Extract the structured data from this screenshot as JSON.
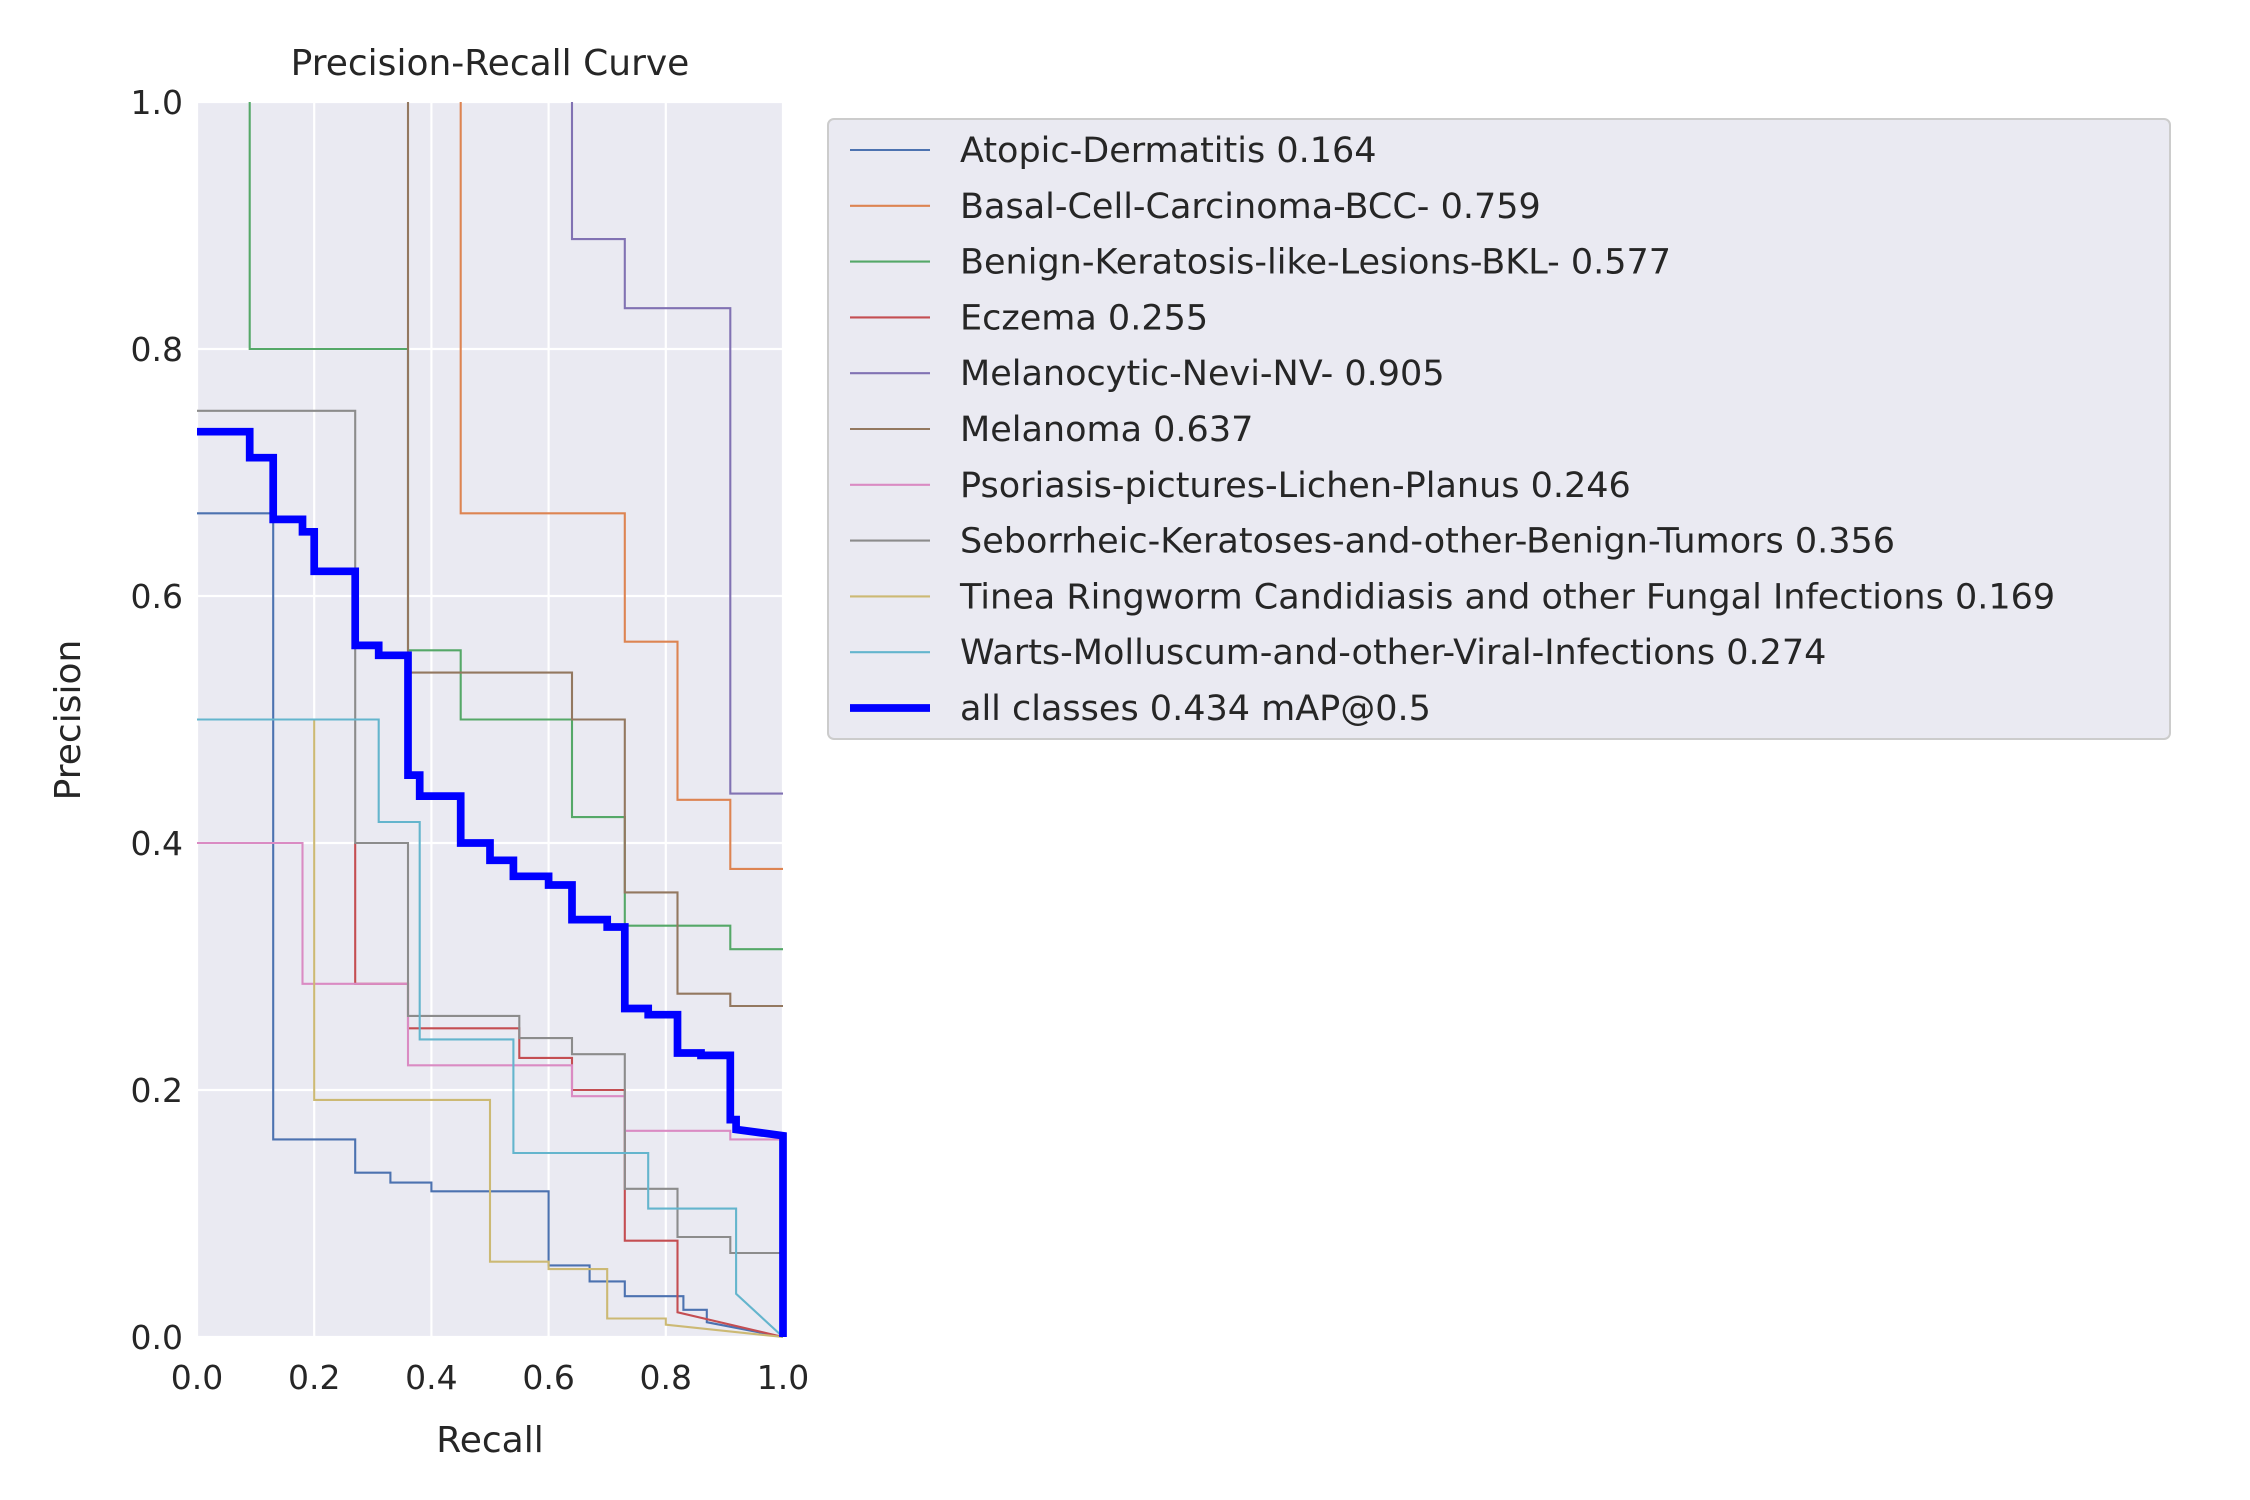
{
  "chart_data": {
    "type": "line",
    "title": "Precision-Recall Curve",
    "xlabel": "Recall",
    "ylabel": "Precision",
    "xlim": [
      0,
      1
    ],
    "ylim": [
      0,
      1
    ],
    "grid": true,
    "legend_position": "outside-right",
    "x_ticks": [
      "0.0",
      "0.2",
      "0.4",
      "0.6",
      "0.8",
      "1.0"
    ],
    "y_ticks": [
      "0.0",
      "0.2",
      "0.4",
      "0.6",
      "0.8",
      "1.0"
    ],
    "series": [
      {
        "name": "Atopic-Dermatitis 0.164",
        "color": "#4c72b0",
        "width": 1.5,
        "points": [
          [
            0,
            0.667
          ],
          [
            0.13,
            0.667
          ],
          [
            0.13,
            0.16
          ],
          [
            0.27,
            0.16
          ],
          [
            0.27,
            0.133
          ],
          [
            0.33,
            0.133
          ],
          [
            0.33,
            0.125
          ],
          [
            0.4,
            0.125
          ],
          [
            0.4,
            0.118
          ],
          [
            0.6,
            0.118
          ],
          [
            0.6,
            0.058
          ],
          [
            0.67,
            0.058
          ],
          [
            0.67,
            0.045
          ],
          [
            0.73,
            0.045
          ],
          [
            0.73,
            0.033
          ],
          [
            0.83,
            0.033
          ],
          [
            0.83,
            0.022
          ],
          [
            0.87,
            0.022
          ],
          [
            0.87,
            0.012
          ],
          [
            1.0,
            0.0
          ]
        ]
      },
      {
        "name": "Basal-Cell-Carcinoma-BCC- 0.759",
        "color": "#dd8452",
        "width": 1.5,
        "points": [
          [
            0.45,
            1.0
          ],
          [
            0.45,
            0.667
          ],
          [
            0.73,
            0.667
          ],
          [
            0.73,
            0.563
          ],
          [
            0.82,
            0.563
          ],
          [
            0.82,
            0.435
          ],
          [
            0.91,
            0.435
          ],
          [
            0.91,
            0.379
          ],
          [
            1.0,
            0.379
          ]
        ]
      },
      {
        "name": "Benign-Keratosis-like-Lesions-BKL- 0.577",
        "color": "#55a868",
        "width": 1.5,
        "points": [
          [
            0.09,
            1.0
          ],
          [
            0.09,
            0.8
          ],
          [
            0.36,
            0.8
          ],
          [
            0.36,
            0.556
          ],
          [
            0.45,
            0.556
          ],
          [
            0.45,
            0.5
          ],
          [
            0.64,
            0.5
          ],
          [
            0.64,
            0.421
          ],
          [
            0.73,
            0.421
          ],
          [
            0.73,
            0.333
          ],
          [
            0.91,
            0.333
          ],
          [
            0.91,
            0.314
          ],
          [
            1.0,
            0.314
          ]
        ]
      },
      {
        "name": "Eczema 0.255",
        "color": "#c44e52",
        "width": 1.5,
        "points": [
          [
            0.27,
            0.4
          ],
          [
            0.27,
            0.286
          ],
          [
            0.36,
            0.286
          ],
          [
            0.36,
            0.25
          ],
          [
            0.55,
            0.25
          ],
          [
            0.55,
            0.226
          ],
          [
            0.64,
            0.226
          ],
          [
            0.64,
            0.2
          ],
          [
            0.73,
            0.2
          ],
          [
            0.73,
            0.078
          ],
          [
            0.82,
            0.078
          ],
          [
            0.82,
            0.02
          ],
          [
            1.0,
            0.0
          ]
        ]
      },
      {
        "name": "Melanocytic-Nevi-NV- 0.905",
        "color": "#8172b3",
        "width": 1.5,
        "points": [
          [
            0.64,
            1.0
          ],
          [
            0.64,
            0.889
          ],
          [
            0.73,
            0.889
          ],
          [
            0.73,
            0.833
          ],
          [
            0.91,
            0.833
          ],
          [
            0.91,
            0.44
          ],
          [
            1.0,
            0.44
          ]
        ]
      },
      {
        "name": "Melanoma 0.637",
        "color": "#937860",
        "width": 1.5,
        "points": [
          [
            0.36,
            1.0
          ],
          [
            0.36,
            0.538
          ],
          [
            0.64,
            0.538
          ],
          [
            0.64,
            0.5
          ],
          [
            0.73,
            0.5
          ],
          [
            0.73,
            0.36
          ],
          [
            0.82,
            0.36
          ],
          [
            0.82,
            0.278
          ],
          [
            0.91,
            0.278
          ],
          [
            0.91,
            0.268
          ],
          [
            1.0,
            0.268
          ]
        ]
      },
      {
        "name": "Psoriasis-pictures-Lichen-Planus 0.246",
        "color": "#da8bc3",
        "width": 1.5,
        "points": [
          [
            0,
            0.4
          ],
          [
            0.18,
            0.4
          ],
          [
            0.18,
            0.286
          ],
          [
            0.36,
            0.286
          ],
          [
            0.36,
            0.22
          ],
          [
            0.64,
            0.22
          ],
          [
            0.64,
            0.195
          ],
          [
            0.73,
            0.195
          ],
          [
            0.73,
            0.167
          ],
          [
            0.91,
            0.167
          ],
          [
            0.91,
            0.16
          ],
          [
            1.0,
            0.16
          ]
        ]
      },
      {
        "name": "Seborrheic-Keratoses-and-other-Benign-Tumors 0.356",
        "color": "#8c8c8c",
        "width": 1.5,
        "points": [
          [
            0,
            0.75
          ],
          [
            0.27,
            0.75
          ],
          [
            0.27,
            0.4
          ],
          [
            0.36,
            0.4
          ],
          [
            0.36,
            0.26
          ],
          [
            0.55,
            0.26
          ],
          [
            0.55,
            0.242
          ],
          [
            0.64,
            0.242
          ],
          [
            0.64,
            0.229
          ],
          [
            0.73,
            0.229
          ],
          [
            0.73,
            0.12
          ],
          [
            0.82,
            0.12
          ],
          [
            0.82,
            0.081
          ],
          [
            0.91,
            0.081
          ],
          [
            0.91,
            0.068
          ],
          [
            1.0,
            0.068
          ]
        ]
      },
      {
        "name": "Tinea Ringworm Candidiasis and other Fungal Infections 0.169",
        "color": "#ccb974",
        "width": 1.5,
        "points": [
          [
            0.2,
            0.5
          ],
          [
            0.2,
            0.192
          ],
          [
            0.5,
            0.192
          ],
          [
            0.5,
            0.061
          ],
          [
            0.6,
            0.061
          ],
          [
            0.6,
            0.055
          ],
          [
            0.7,
            0.055
          ],
          [
            0.7,
            0.015
          ],
          [
            0.8,
            0.015
          ],
          [
            0.8,
            0.01
          ],
          [
            1.0,
            0.0
          ]
        ]
      },
      {
        "name": "Warts-Molluscum-and-other-Viral-Infections 0.274",
        "color": "#64b5cd",
        "width": 1.5,
        "points": [
          [
            0,
            0.5
          ],
          [
            0.31,
            0.5
          ],
          [
            0.31,
            0.417
          ],
          [
            0.38,
            0.417
          ],
          [
            0.38,
            0.241
          ],
          [
            0.54,
            0.241
          ],
          [
            0.54,
            0.149
          ],
          [
            0.77,
            0.149
          ],
          [
            0.77,
            0.104
          ],
          [
            0.92,
            0.104
          ],
          [
            0.92,
            0.035
          ],
          [
            1.0,
            0.0
          ]
        ]
      },
      {
        "name": "all classes 0.434 mAP@0.5",
        "color": "#0000ff",
        "width": 5.5,
        "points": [
          [
            0,
            0.733
          ],
          [
            0.09,
            0.733
          ],
          [
            0.09,
            0.712
          ],
          [
            0.13,
            0.712
          ],
          [
            0.13,
            0.662
          ],
          [
            0.18,
            0.662
          ],
          [
            0.18,
            0.652
          ],
          [
            0.2,
            0.652
          ],
          [
            0.2,
            0.62
          ],
          [
            0.27,
            0.62
          ],
          [
            0.27,
            0.56
          ],
          [
            0.31,
            0.56
          ],
          [
            0.31,
            0.552
          ],
          [
            0.36,
            0.552
          ],
          [
            0.36,
            0.455
          ],
          [
            0.38,
            0.455
          ],
          [
            0.38,
            0.438
          ],
          [
            0.45,
            0.438
          ],
          [
            0.45,
            0.4
          ],
          [
            0.5,
            0.4
          ],
          [
            0.5,
            0.386
          ],
          [
            0.54,
            0.386
          ],
          [
            0.54,
            0.373
          ],
          [
            0.6,
            0.373
          ],
          [
            0.6,
            0.366
          ],
          [
            0.64,
            0.366
          ],
          [
            0.64,
            0.338
          ],
          [
            0.7,
            0.338
          ],
          [
            0.7,
            0.332
          ],
          [
            0.73,
            0.332
          ],
          [
            0.73,
            0.266
          ],
          [
            0.77,
            0.266
          ],
          [
            0.77,
            0.261
          ],
          [
            0.82,
            0.261
          ],
          [
            0.82,
            0.23
          ],
          [
            0.86,
            0.23
          ],
          [
            0.86,
            0.228
          ],
          [
            0.91,
            0.228
          ],
          [
            0.91,
            0.176
          ],
          [
            0.92,
            0.176
          ],
          [
            0.92,
            0.168
          ],
          [
            1.0,
            0.163
          ],
          [
            1.0,
            0.0
          ]
        ]
      }
    ]
  }
}
